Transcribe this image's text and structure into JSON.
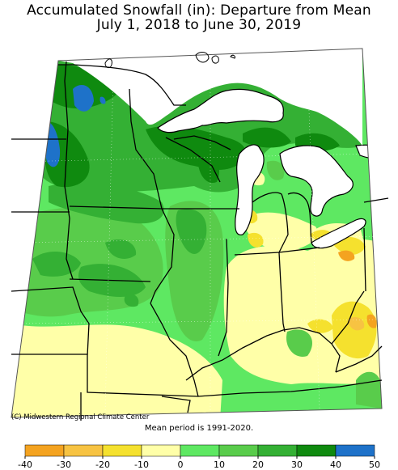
{
  "title_line1": "Accumulated Snowfall (in): Departure from Mean",
  "title_line2": "July 1, 2018 to June 30, 2019",
  "credit": "(C) Midwestern Regional Climate Center",
  "mean_period": "Mean period is 1991-2020.",
  "legend": {
    "bins": [
      {
        "label": "-40",
        "color": "#f4a320"
      },
      {
        "label": "-30",
        "color": "#f7c342"
      },
      {
        "label": "-20",
        "color": "#f5e12e"
      },
      {
        "label": "-10",
        "color": "#ffffa8"
      },
      {
        "label": "0",
        "color": "#5ee862"
      },
      {
        "label": "10",
        "color": "#59cc4b"
      },
      {
        "label": "20",
        "color": "#34b034"
      },
      {
        "label": "30",
        "color": "#0f8a0f"
      },
      {
        "label": "40",
        "color": "#1e72c9"
      }
    ],
    "last_label": "50"
  },
  "colors": {
    "water": "#ffffff",
    "boundary": "#000000",
    "state_lines": "#000000",
    "map_frame": "#555555"
  }
}
